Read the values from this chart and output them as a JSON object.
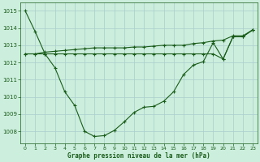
{
  "title": "Graphe pression niveau de la mer (hPa)",
  "bg_color": "#cceedd",
  "grid_color": "#aacccc",
  "line_color": "#1a5c1a",
  "xlim": [
    -0.5,
    23.5
  ],
  "ylim": [
    1007.3,
    1015.5
  ],
  "yticks": [
    1008,
    1009,
    1010,
    1011,
    1012,
    1013,
    1014,
    1015
  ],
  "xticks": [
    0,
    1,
    2,
    3,
    4,
    5,
    6,
    7,
    8,
    9,
    10,
    11,
    12,
    13,
    14,
    15,
    16,
    17,
    18,
    19,
    20,
    21,
    22,
    23
  ],
  "series1_x": [
    0,
    1,
    2,
    3,
    4,
    5,
    6,
    7,
    8,
    9,
    10,
    11,
    12,
    13,
    14,
    15,
    16,
    17,
    18,
    19,
    20,
    21,
    22,
    23
  ],
  "series1_y": [
    1015.0,
    1013.8,
    1012.5,
    1011.7,
    1010.3,
    1009.5,
    1008.0,
    1007.7,
    1007.75,
    1008.05,
    1008.55,
    1009.1,
    1009.4,
    1009.45,
    1009.75,
    1010.3,
    1011.3,
    1011.85,
    1012.05,
    1013.15,
    1012.2,
    1013.5,
    1013.5,
    1013.9
  ],
  "series2_x": [
    0,
    1,
    2,
    3,
    4,
    5,
    6,
    7,
    8,
    9,
    10,
    11,
    12,
    13,
    14,
    15,
    16,
    17,
    18,
    19,
    20,
    21,
    22,
    23
  ],
  "series2_y": [
    1012.5,
    1012.5,
    1012.5,
    1012.5,
    1012.5,
    1012.5,
    1012.5,
    1012.5,
    1012.5,
    1012.5,
    1012.5,
    1012.5,
    1012.5,
    1012.5,
    1012.5,
    1012.5,
    1012.5,
    1012.5,
    1012.5,
    1012.5,
    1012.2,
    1013.5,
    1013.5,
    1013.9
  ],
  "series3_x": [
    0,
    1,
    2,
    3,
    4,
    5,
    6,
    7,
    8,
    9,
    10,
    11,
    12,
    13,
    14,
    15,
    16,
    17,
    18,
    19,
    20,
    21,
    22,
    23
  ],
  "series3_y": [
    1012.5,
    1012.5,
    1012.6,
    1012.65,
    1012.7,
    1012.75,
    1012.8,
    1012.85,
    1012.85,
    1012.85,
    1012.85,
    1012.9,
    1012.9,
    1012.95,
    1013.0,
    1013.0,
    1013.0,
    1013.1,
    1013.15,
    1013.25,
    1013.3,
    1013.55,
    1013.55,
    1013.9
  ]
}
